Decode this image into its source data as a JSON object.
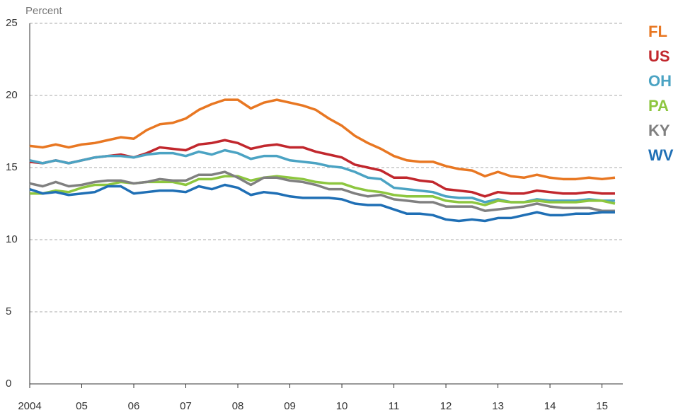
{
  "chart_data": {
    "type": "line",
    "y_label": "Percent",
    "x": [
      2004,
      2004.25,
      2004.5,
      2004.75,
      2005,
      2005.25,
      2005.5,
      2005.75,
      2006,
      2006.25,
      2006.5,
      2006.75,
      2007,
      2007.25,
      2007.5,
      2007.75,
      2008,
      2008.25,
      2008.5,
      2008.75,
      2009,
      2009.25,
      2009.5,
      2009.75,
      2010,
      2010.25,
      2010.5,
      2010.75,
      2011,
      2011.25,
      2011.5,
      2011.75,
      2012,
      2012.25,
      2012.5,
      2012.75,
      2013,
      2013.25,
      2013.5,
      2013.75,
      2014,
      2014.25,
      2014.5,
      2014.75,
      2015,
      2015.25
    ],
    "series": [
      {
        "name": "FL",
        "color": "#e87722",
        "values": [
          16.5,
          16.4,
          16.6,
          16.4,
          16.6,
          16.7,
          16.9,
          17.1,
          17.0,
          17.6,
          18.0,
          18.1,
          18.4,
          19.0,
          19.4,
          19.7,
          19.7,
          19.1,
          19.5,
          19.7,
          19.5,
          19.3,
          19.0,
          18.4,
          17.9,
          17.2,
          16.7,
          16.3,
          15.8,
          15.5,
          15.4,
          15.4,
          15.1,
          14.9,
          14.8,
          14.4,
          14.7,
          14.4,
          14.3,
          14.5,
          14.3,
          14.2,
          14.2,
          14.3,
          14.2,
          14.3
        ]
      },
      {
        "name": "US",
        "color": "#c1272d",
        "values": [
          15.4,
          15.3,
          15.5,
          15.3,
          15.5,
          15.7,
          15.8,
          15.9,
          15.7,
          16.0,
          16.4,
          16.3,
          16.2,
          16.6,
          16.7,
          16.9,
          16.7,
          16.3,
          16.5,
          16.6,
          16.4,
          16.4,
          16.1,
          15.9,
          15.7,
          15.2,
          15.0,
          14.8,
          14.3,
          14.3,
          14.1,
          14.0,
          13.5,
          13.4,
          13.3,
          13.0,
          13.3,
          13.2,
          13.2,
          13.4,
          13.3,
          13.2,
          13.2,
          13.3,
          13.2,
          13.2
        ]
      },
      {
        "name": "OH",
        "color": "#4ba3c3",
        "values": [
          15.5,
          15.3,
          15.5,
          15.3,
          15.5,
          15.7,
          15.8,
          15.8,
          15.7,
          15.9,
          16.0,
          16.0,
          15.8,
          16.1,
          15.9,
          16.2,
          16.0,
          15.6,
          15.8,
          15.8,
          15.5,
          15.4,
          15.3,
          15.1,
          15.0,
          14.7,
          14.3,
          14.2,
          13.6,
          13.5,
          13.4,
          13.3,
          13.0,
          12.9,
          12.9,
          12.6,
          12.8,
          12.6,
          12.6,
          12.8,
          12.7,
          12.7,
          12.7,
          12.8,
          12.7,
          12.7
        ]
      },
      {
        "name": "PA",
        "color": "#8dc63f",
        "values": [
          13.2,
          13.2,
          13.4,
          13.3,
          13.6,
          13.8,
          13.8,
          14.0,
          13.9,
          14.0,
          14.0,
          14.0,
          13.8,
          14.2,
          14.2,
          14.4,
          14.4,
          14.1,
          14.3,
          14.4,
          14.3,
          14.2,
          14.0,
          13.9,
          13.9,
          13.6,
          13.4,
          13.3,
          13.1,
          13.0,
          13.0,
          13.0,
          12.7,
          12.6,
          12.6,
          12.4,
          12.7,
          12.6,
          12.6,
          12.7,
          12.6,
          12.6,
          12.6,
          12.7,
          12.7,
          12.5
        ]
      },
      {
        "name": "KY",
        "color": "#808080",
        "values": [
          13.9,
          13.7,
          14.0,
          13.7,
          13.8,
          14.0,
          14.1,
          14.1,
          13.9,
          14.0,
          14.2,
          14.1,
          14.1,
          14.5,
          14.5,
          14.7,
          14.3,
          13.8,
          14.3,
          14.3,
          14.1,
          14.0,
          13.8,
          13.5,
          13.5,
          13.2,
          13.0,
          13.1,
          12.8,
          12.7,
          12.6,
          12.6,
          12.3,
          12.3,
          12.3,
          12.0,
          12.1,
          12.2,
          12.3,
          12.5,
          12.3,
          12.2,
          12.2,
          12.2,
          12.0,
          12.0
        ]
      },
      {
        "name": "WV",
        "color": "#1f6fb5",
        "values": [
          13.5,
          13.2,
          13.3,
          13.1,
          13.2,
          13.3,
          13.7,
          13.7,
          13.2,
          13.3,
          13.4,
          13.4,
          13.3,
          13.7,
          13.5,
          13.8,
          13.6,
          13.1,
          13.3,
          13.2,
          13.0,
          12.9,
          12.9,
          12.9,
          12.8,
          12.5,
          12.4,
          12.4,
          12.1,
          11.8,
          11.8,
          11.7,
          11.4,
          11.3,
          11.4,
          11.3,
          11.5,
          11.5,
          11.7,
          11.9,
          11.7,
          11.7,
          11.8,
          11.8,
          11.9,
          11.9
        ]
      }
    ],
    "xlim": [
      2004,
      2015.4
    ],
    "xticks": [
      {
        "value": 2004,
        "label": "2004"
      },
      {
        "value": 2005,
        "label": "05"
      },
      {
        "value": 2006,
        "label": "06"
      },
      {
        "value": 2007,
        "label": "07"
      },
      {
        "value": 2008,
        "label": "08"
      },
      {
        "value": 2009,
        "label": "09"
      },
      {
        "value": 2010,
        "label": "10"
      },
      {
        "value": 2011,
        "label": "11"
      },
      {
        "value": 2012,
        "label": "12"
      },
      {
        "value": 2013,
        "label": "13"
      },
      {
        "value": 2014,
        "label": "14"
      },
      {
        "value": 2015,
        "label": "15"
      }
    ],
    "ylim": [
      0,
      25
    ],
    "yticks": [
      0,
      5,
      10,
      15,
      20,
      25
    ],
    "grid": true,
    "legend": "right"
  }
}
